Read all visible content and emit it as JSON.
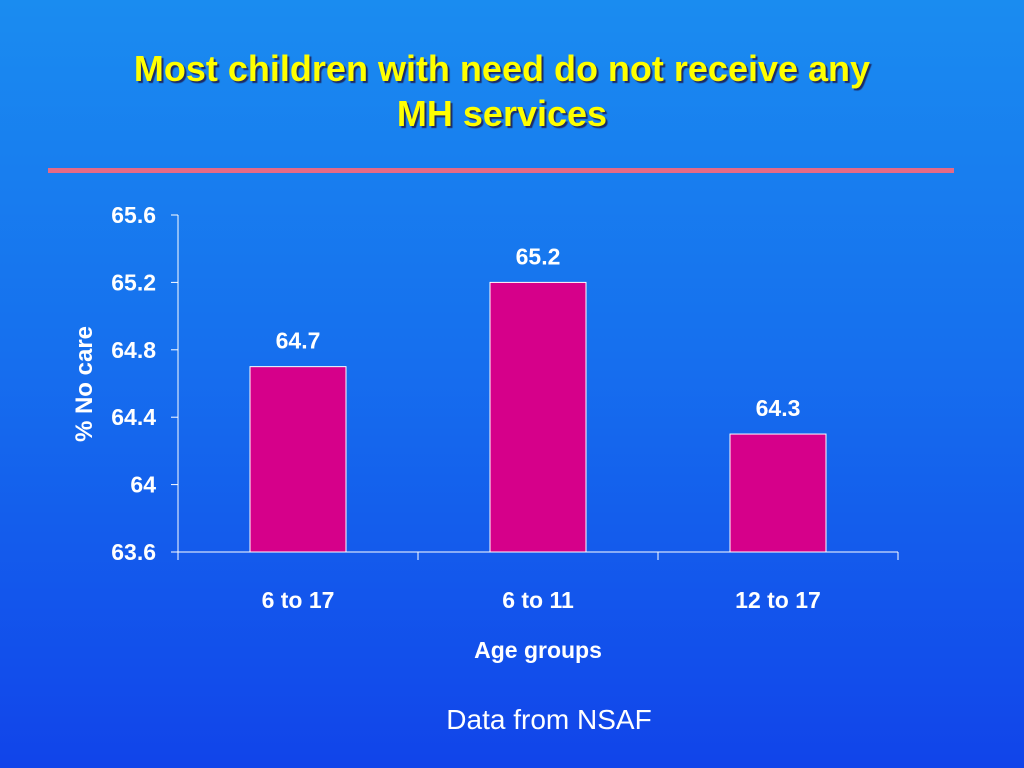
{
  "slide": {
    "title_line1": "Most children with need do not receive any",
    "title_line2": "MH services",
    "footnote": "Data from NSAF",
    "colors": {
      "title": "#ffff00",
      "divider": "#e56a86",
      "bar": "#d6008a",
      "text": "#ffffff"
    }
  },
  "chart_data": {
    "type": "bar",
    "categories": [
      "6 to 17",
      "6 to 11",
      "12 to 17"
    ],
    "values": [
      64.7,
      65.2,
      64.3
    ],
    "data_labels": [
      "64.7",
      "65.2",
      "64.3"
    ],
    "xlabel": "Age groups",
    "ylabel": "% No care",
    "ylim": [
      63.6,
      65.6
    ],
    "yticks": [
      63.6,
      64,
      64.4,
      64.8,
      65.2,
      65.6
    ],
    "ytick_labels": [
      "63.6",
      "64",
      "64.4",
      "64.8",
      "65.2",
      "65.6"
    ],
    "grid": false,
    "legend": "none"
  }
}
